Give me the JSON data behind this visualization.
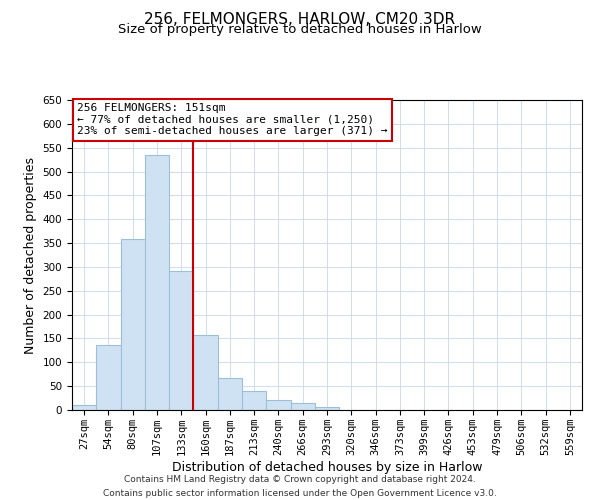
{
  "title": "256, FELMONGERS, HARLOW, CM20 3DR",
  "subtitle": "Size of property relative to detached houses in Harlow",
  "xlabel": "Distribution of detached houses by size in Harlow",
  "ylabel": "Number of detached properties",
  "bar_labels": [
    "27sqm",
    "54sqm",
    "80sqm",
    "107sqm",
    "133sqm",
    "160sqm",
    "187sqm",
    "213sqm",
    "240sqm",
    "266sqm",
    "293sqm",
    "320sqm",
    "346sqm",
    "373sqm",
    "399sqm",
    "426sqm",
    "453sqm",
    "479sqm",
    "506sqm",
    "532sqm",
    "559sqm"
  ],
  "bar_values": [
    10,
    137,
    358,
    535,
    292,
    157,
    67,
    40,
    22,
    15,
    7,
    0,
    0,
    0,
    0,
    1,
    0,
    0,
    0,
    0,
    1
  ],
  "bar_color": "#cfe2f3",
  "bar_edge_color": "#9bbfd8",
  "ylim": [
    0,
    650
  ],
  "yticks": [
    0,
    50,
    100,
    150,
    200,
    250,
    300,
    350,
    400,
    450,
    500,
    550,
    600,
    650
  ],
  "vline_x": 4.5,
  "vline_color": "#cc0000",
  "annotation_title": "256 FELMONGERS: 151sqm",
  "annotation_line1": "← 77% of detached houses are smaller (1,250)",
  "annotation_line2": "23% of semi-detached houses are larger (371) →",
  "annotation_box_color": "#ffffff",
  "annotation_box_edge": "#cc0000",
  "footer_line1": "Contains HM Land Registry data © Crown copyright and database right 2024.",
  "footer_line2": "Contains public sector information licensed under the Open Government Licence v3.0.",
  "title_fontsize": 11,
  "subtitle_fontsize": 9.5,
  "axis_label_fontsize": 9,
  "tick_fontsize": 7.5,
  "annotation_fontsize": 8,
  "footer_fontsize": 6.5
}
